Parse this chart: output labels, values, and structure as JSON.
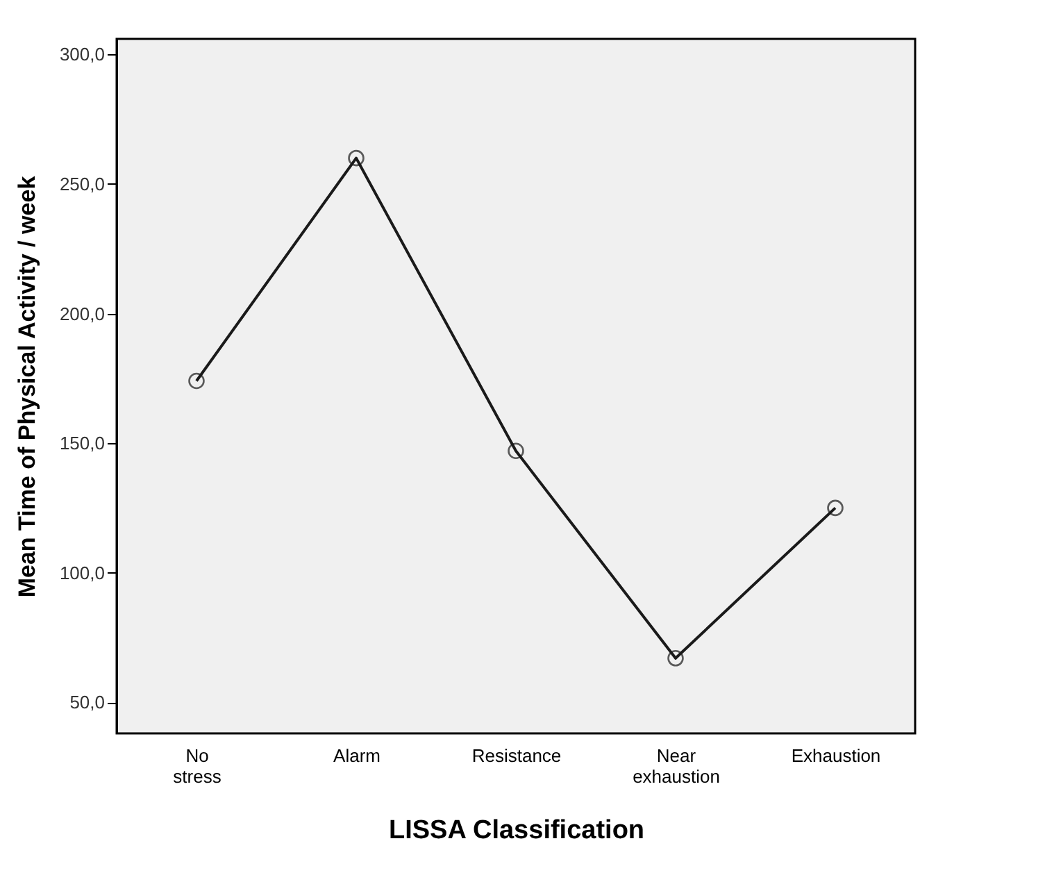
{
  "chart_data": {
    "type": "line",
    "xlabel": "LISSA Classification",
    "ylabel": "Mean Time of Physical Activity / week",
    "categories": [
      "No stress",
      "Alarm",
      "Resistance",
      "Near exhaustion",
      "Exhaustion"
    ],
    "series": [
      {
        "color": "#1a1a1a",
        "values": [
          174,
          260,
          147,
          67,
          125
        ]
      }
    ],
    "ylim": [
      38,
      306
    ],
    "yticks": [
      {
        "value": 50,
        "label": "50,0"
      },
      {
        "value": 100,
        "label": "100,0"
      },
      {
        "value": 150,
        "label": "150,0"
      },
      {
        "value": 200,
        "label": "200,0"
      },
      {
        "value": 250,
        "label": "250,0"
      },
      {
        "value": 300,
        "label": "300,0"
      }
    ],
    "marker": "circle",
    "line_style": "solid",
    "grid": false,
    "legend": false
  }
}
